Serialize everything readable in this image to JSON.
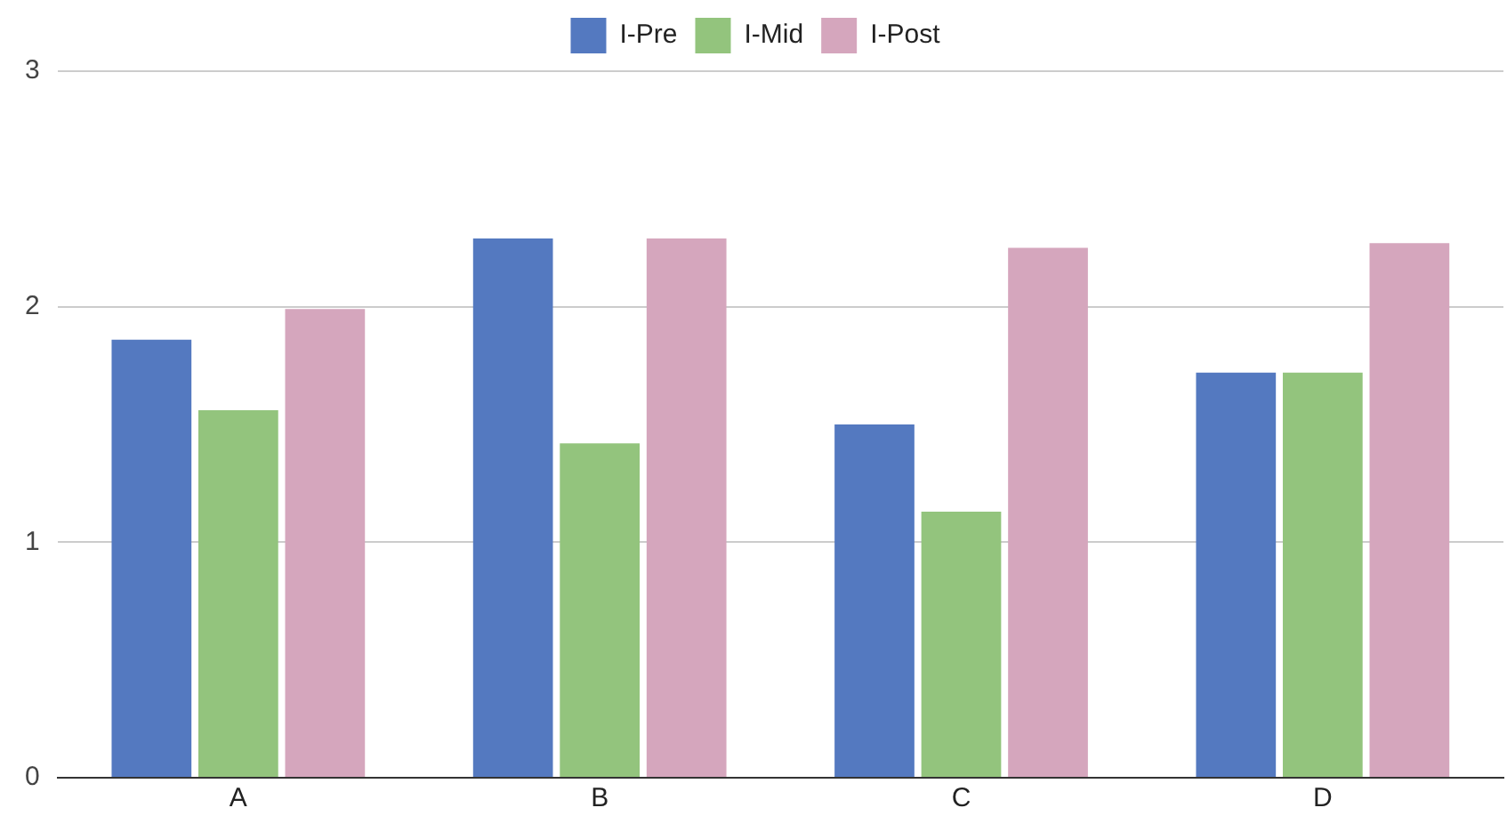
{
  "chart_data": {
    "type": "bar",
    "categories": [
      "A",
      "B",
      "C",
      "D"
    ],
    "series": [
      {
        "name": "I-Pre",
        "color": "#5479c0",
        "values": [
          1.86,
          2.29,
          1.5,
          1.72
        ]
      },
      {
        "name": "I-Mid",
        "color": "#93c47d",
        "values": [
          1.56,
          1.42,
          1.13,
          1.72
        ]
      },
      {
        "name": "I-Post",
        "color": "#d5a6bd",
        "values": [
          1.99,
          2.29,
          2.25,
          2.27
        ]
      }
    ],
    "ylim": [
      0,
      3
    ],
    "yticks": [
      0,
      1,
      2,
      3
    ],
    "grid": "y",
    "legend": "top"
  }
}
